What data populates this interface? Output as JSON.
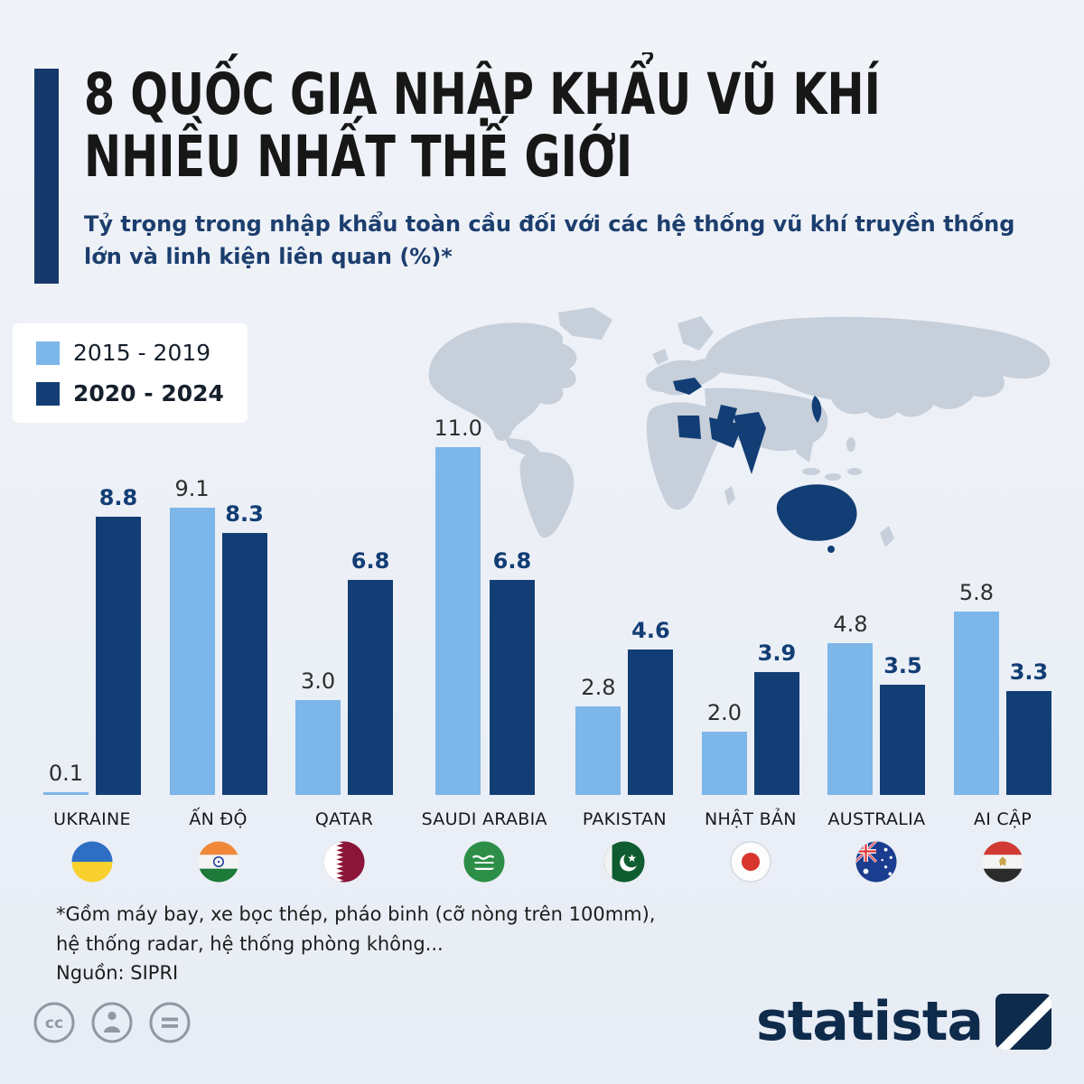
{
  "colors": {
    "background": "#eef1f6",
    "accent": "#16386b",
    "title": "#171717",
    "subtitle": "#1c3e6e",
    "light_series": "#7db6e9",
    "dark_series": "#123e75",
    "map_land": "#c7cfda",
    "map_highlight": "#123e75",
    "footnote": "#1d1d1d",
    "brand": "#0f2b4c",
    "icon_gray": "#9098a1"
  },
  "header": {
    "title": "8 QUỐC GIA NHẬP KHẨU VŨ KHÍ\nNHIỀU NHẤT THẾ GIỚI",
    "subtitle": "Tỷ trọng trong nhập khẩu toàn cầu đối với các hệ thống vũ khí truyền thống\nlớn và linh kiện liên quan (%)*"
  },
  "legend": {
    "items": [
      {
        "label": "2015 - 2019",
        "color": "#7db6e9",
        "bold": false
      },
      {
        "label": "2020 - 2024",
        "color": "#123e75",
        "bold": true
      }
    ]
  },
  "chart_data": {
    "type": "bar",
    "categories": [
      "UKRAINE",
      "ẤN ĐỘ",
      "QATAR",
      "SAUDI ARABIA",
      "PAKISTAN",
      "NHẬT BẢN",
      "AUSTRALIA",
      "AI CẬP"
    ],
    "series": [
      {
        "name": "2015 - 2019",
        "color": "#7db6e9",
        "values": [
          0.1,
          9.1,
          3.0,
          11.0,
          2.8,
          2.0,
          4.8,
          5.8
        ]
      },
      {
        "name": "2020 - 2024",
        "color": "#123e75",
        "values": [
          8.8,
          8.3,
          6.8,
          6.8,
          4.6,
          3.9,
          3.5,
          3.3
        ]
      }
    ],
    "unit": "%",
    "ylim": [
      0,
      11.5
    ],
    "value_labels": true,
    "flags": [
      "ukraine",
      "india",
      "qatar",
      "saudi-arabia",
      "pakistan",
      "japan",
      "australia",
      "egypt"
    ]
  },
  "map": {
    "highlighted_countries": [
      "Ukraine",
      "India",
      "Qatar",
      "Saudi Arabia",
      "Pakistan",
      "Japan",
      "Australia",
      "Egypt"
    ]
  },
  "footnote": "*Gồm máy bay, xe bọc thép, pháo binh (cỡ nòng trên 100mm),\nhệ thống radar, hệ thống phòng không...\nNguồn: SIPRI",
  "license_icons": [
    {
      "name": "creative-commons"
    },
    {
      "name": "attribution"
    },
    {
      "name": "no-derivatives"
    }
  ],
  "brand": {
    "name": "statista"
  }
}
